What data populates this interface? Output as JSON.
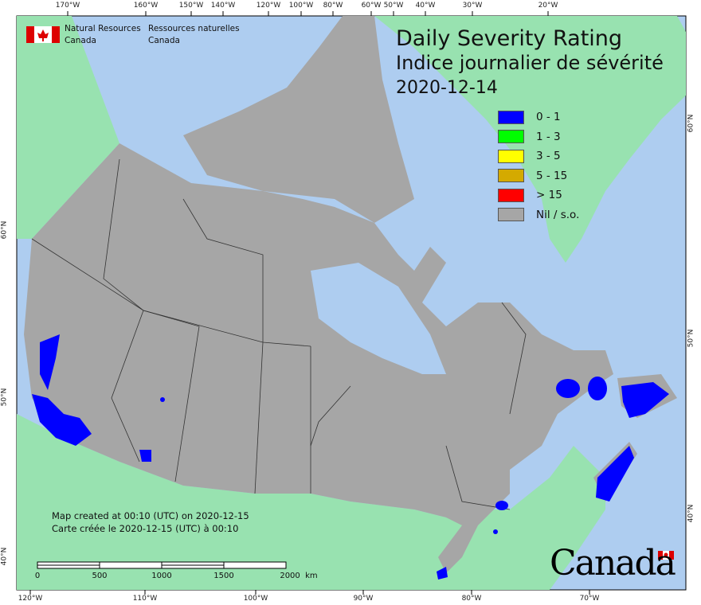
{
  "organization": {
    "en_line1": "Natural Resources",
    "en_line2": "Canada",
    "fr_line1": "Ressources naturelles",
    "fr_line2": "Canada"
  },
  "title": {
    "en": "Daily Severity Rating",
    "fr": "Indice journalier de sévérité",
    "date": "2020-12-14"
  },
  "legend": [
    {
      "label": "0 - 1",
      "color": "#0000ff"
    },
    {
      "label": "1 - 3",
      "color": "#00ff00"
    },
    {
      "label": "3 - 5",
      "color": "#ffff00"
    },
    {
      "label": "5 - 15",
      "color": "#d4aa00"
    },
    {
      "label": "> 15",
      "color": "#ff0000"
    },
    {
      "label": "Nil / s.o.",
      "color": "#a6a6a6"
    }
  ],
  "top_ticks": [
    "170°W",
    "160°W",
    "150°W",
    "140°W",
    "120°W",
    "100°W",
    "80°W",
    "60°W",
    "50°W",
    "40°W",
    "30°W",
    "20°W"
  ],
  "bottom_ticks": [
    "120°W",
    "110°W",
    "100°W",
    "90°W",
    "80°W",
    "70°W"
  ],
  "left_ticks": [
    "60°N",
    "50°N",
    "40°N"
  ],
  "right_ticks": [
    "60°N",
    "50°N",
    "40°N"
  ],
  "map_created": {
    "en": "Map created at 00:10 (UTC) on 2020-12-15",
    "fr": "Carte créée le 2020-12-15 (UTC) à 00:10"
  },
  "scale_bar": {
    "labels": [
      "0",
      "500",
      "1000",
      "1500",
      "2000  km"
    ]
  },
  "wordmark": "Canada",
  "colors": {
    "water": "#aecdf0",
    "foreign_land": "#98e2b0",
    "canada_land": "#a6a6a6",
    "low_rating": "#0000ff"
  }
}
